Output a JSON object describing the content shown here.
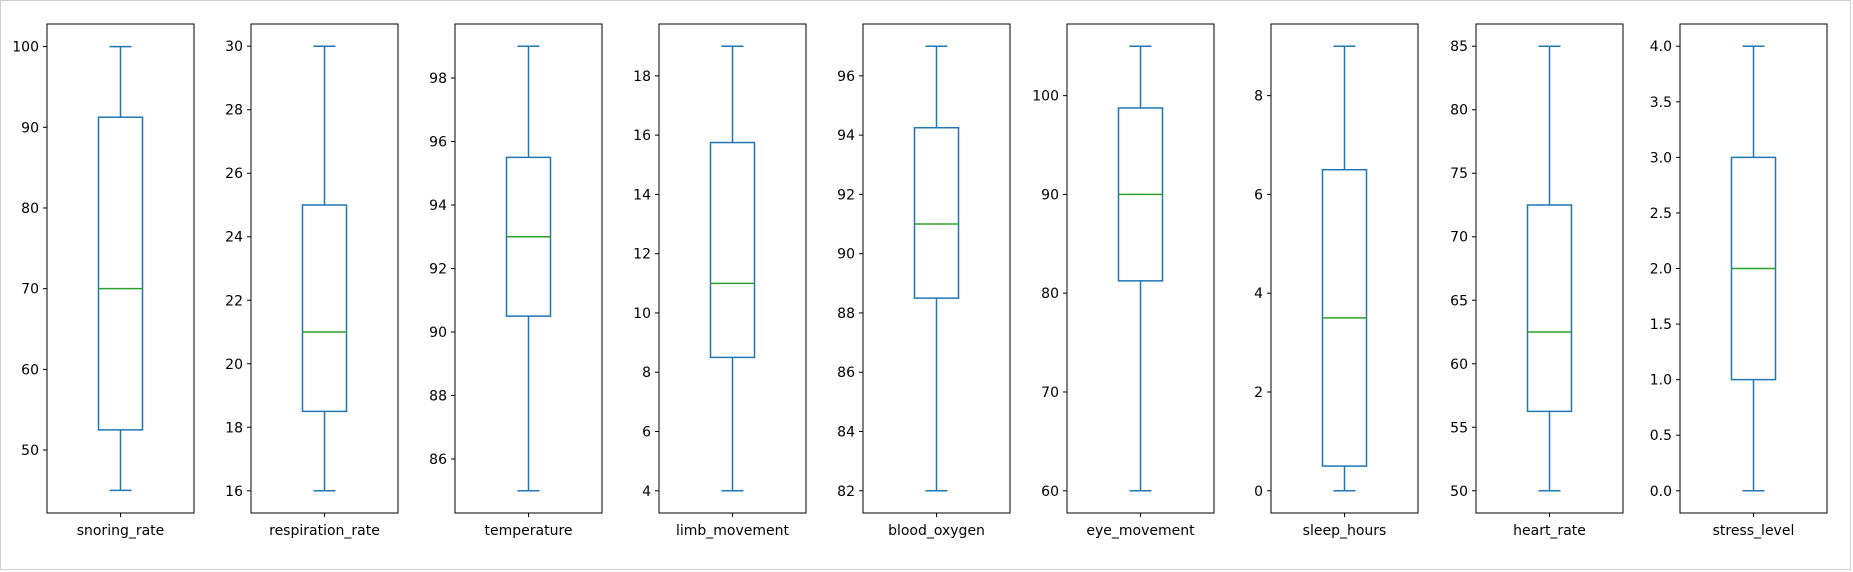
{
  "chart_data": {
    "type": "box",
    "colors": {
      "box": "#1f77b4",
      "median": "#2ca02c",
      "axes": "#000000"
    },
    "grid": false,
    "panels": [
      {
        "name": "snoring_rate",
        "xlabel": "snoring_rate",
        "ylim": [
          42.2,
          102.8
        ],
        "yticks": [
          "50",
          "60",
          "70",
          "80",
          "90",
          "100"
        ],
        "stats": {
          "whisker_low": 45,
          "q1": 52.5,
          "median": 70,
          "q3": 91.25,
          "whisker_high": 100
        }
      },
      {
        "name": "respiration_rate",
        "xlabel": "respiration_rate",
        "ylim": [
          15.3,
          30.7
        ],
        "yticks": [
          "16",
          "18",
          "20",
          "22",
          "24",
          "26",
          "28",
          "30"
        ],
        "stats": {
          "whisker_low": 16,
          "q1": 18.5,
          "median": 21,
          "q3": 25,
          "whisker_high": 30
        }
      },
      {
        "name": "temperature",
        "xlabel": "temperature",
        "ylim": [
          84.3,
          99.7
        ],
        "yticks": [
          "86",
          "88",
          "90",
          "92",
          "94",
          "96",
          "98"
        ],
        "stats": {
          "whisker_low": 85,
          "q1": 90.5,
          "median": 93,
          "q3": 95.5,
          "whisker_high": 99
        }
      },
      {
        "name": "limb_movement",
        "xlabel": "limb_movement",
        "ylim": [
          3.25,
          19.75
        ],
        "yticks": [
          "4",
          "6",
          "8",
          "10",
          "12",
          "14",
          "16",
          "18"
        ],
        "stats": {
          "whisker_low": 4,
          "q1": 8.5,
          "median": 11,
          "q3": 15.75,
          "whisker_high": 19
        }
      },
      {
        "name": "blood_oxygen",
        "xlabel": "blood_oxygen",
        "ylim": [
          81.25,
          97.75
        ],
        "yticks": [
          "82",
          "84",
          "86",
          "88",
          "90",
          "92",
          "94",
          "96"
        ],
        "stats": {
          "whisker_low": 82,
          "q1": 88.5,
          "median": 91,
          "q3": 94.25,
          "whisker_high": 97
        }
      },
      {
        "name": "eye_movement",
        "xlabel": "eye_movement",
        "ylim": [
          57.75,
          107.25
        ],
        "yticks": [
          "60",
          "70",
          "80",
          "90",
          "100"
        ],
        "stats": {
          "whisker_low": 60,
          "q1": 81.25,
          "median": 90,
          "q3": 98.75,
          "whisker_high": 105
        }
      },
      {
        "name": "sleep_hours",
        "xlabel": "sleep_hours",
        "ylim": [
          -0.45,
          9.45
        ],
        "yticks": [
          "0",
          "2",
          "4",
          "6",
          "8"
        ],
        "stats": {
          "whisker_low": 0,
          "q1": 0.5,
          "median": 3.5,
          "q3": 6.5,
          "whisker_high": 9
        }
      },
      {
        "name": "heart_rate",
        "xlabel": "heart_rate",
        "ylim": [
          48.25,
          86.75
        ],
        "yticks": [
          "50",
          "55",
          "60",
          "65",
          "70",
          "75",
          "80",
          "85"
        ],
        "stats": {
          "whisker_low": 50,
          "q1": 56.25,
          "median": 62.5,
          "q3": 72.5,
          "whisker_high": 85
        }
      },
      {
        "name": "stress_level",
        "xlabel": "stress_level",
        "ylim": [
          -0.2,
          4.2
        ],
        "yticks": [
          "0.0",
          "0.5",
          "1.0",
          "1.5",
          "2.0",
          "2.5",
          "3.0",
          "3.5",
          "4.0"
        ],
        "stats": {
          "whisker_low": 0,
          "q1": 1,
          "median": 2,
          "q3": 3,
          "whisker_high": 4
        }
      }
    ]
  }
}
